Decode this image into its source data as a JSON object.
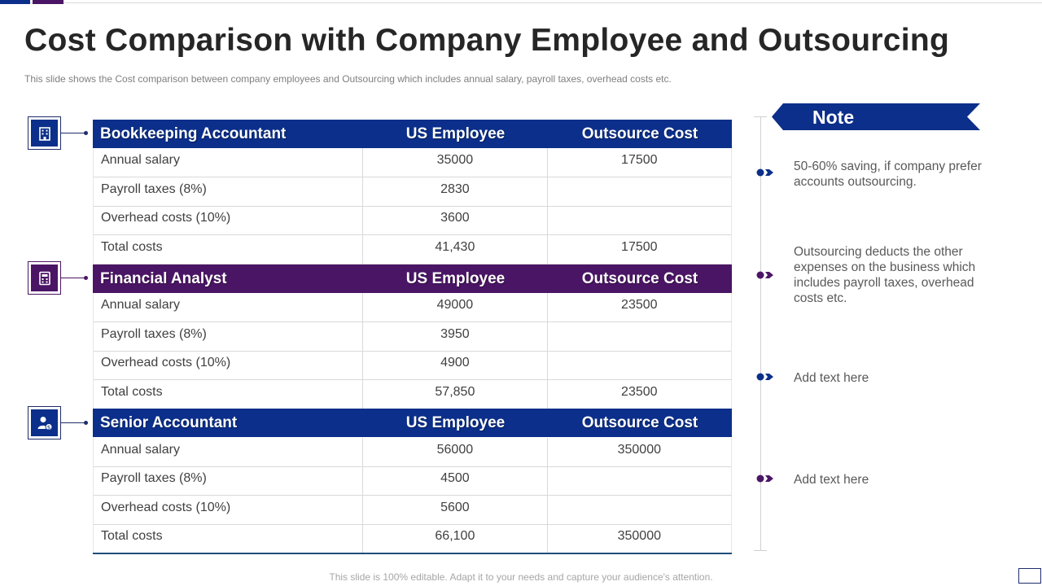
{
  "slide": {
    "title": "Cost Comparison with Company Employee and Outsourcing",
    "subtitle": "This slide shows the Cost comparison between company employees and Outsourcing which includes annual salary, payroll taxes, overhead  costs etc.",
    "footer": "This slide is 100% editable. Adapt it to your needs and capture your audience's attention."
  },
  "colors": {
    "blue": "#0b2f8a",
    "purple": "#4b1565",
    "grid": "#d9d9d9"
  },
  "sections": [
    {
      "title": "Bookkeeping Accountant",
      "col2": "US Employee",
      "col3": "Outsource Cost",
      "icon": "building-icon",
      "rows": [
        {
          "label": "Annual salary",
          "us": "35000",
          "out": "17500"
        },
        {
          "label": "Payroll taxes (8%)",
          "us": "2830",
          "out": ""
        },
        {
          "label": "Overhead costs (10%)",
          "us": "3600",
          "out": ""
        },
        {
          "label": "Total costs",
          "us": "41,430",
          "out": "17500"
        }
      ]
    },
    {
      "title": "Financial Analyst",
      "col2": "US Employee",
      "col3": "Outsource Cost",
      "icon": "analyst-icon",
      "rows": [
        {
          "label": "Annual salary",
          "us": "49000",
          "out": "23500"
        },
        {
          "label": "Payroll taxes (8%)",
          "us": "3950",
          "out": ""
        },
        {
          "label": "Overhead costs (10%)",
          "us": "4900",
          "out": ""
        },
        {
          "label": "Total costs",
          "us": "57,850",
          "out": "23500"
        }
      ]
    },
    {
      "title": "Senior Accountant",
      "col2": "US Employee",
      "col3": "Outsource Cost",
      "icon": "user-dollar-icon",
      "rows": [
        {
          "label": "Annual salary",
          "us": "56000",
          "out": "350000"
        },
        {
          "label": "Payroll taxes (8%)",
          "us": "4500",
          "out": ""
        },
        {
          "label": "Overhead costs (10%)",
          "us": "5600",
          "out": ""
        },
        {
          "label": "Total costs",
          "us": "66,100",
          "out": "350000"
        }
      ]
    }
  ],
  "note": {
    "heading": "Note",
    "items": [
      {
        "text": "50-60% saving, if company prefer accounts outsourcing."
      },
      {
        "text": "Outsourcing deducts the other expenses on the business which includes payroll taxes, overhead costs etc."
      },
      {
        "text": "Add text here"
      },
      {
        "text": "Add text here"
      }
    ]
  }
}
